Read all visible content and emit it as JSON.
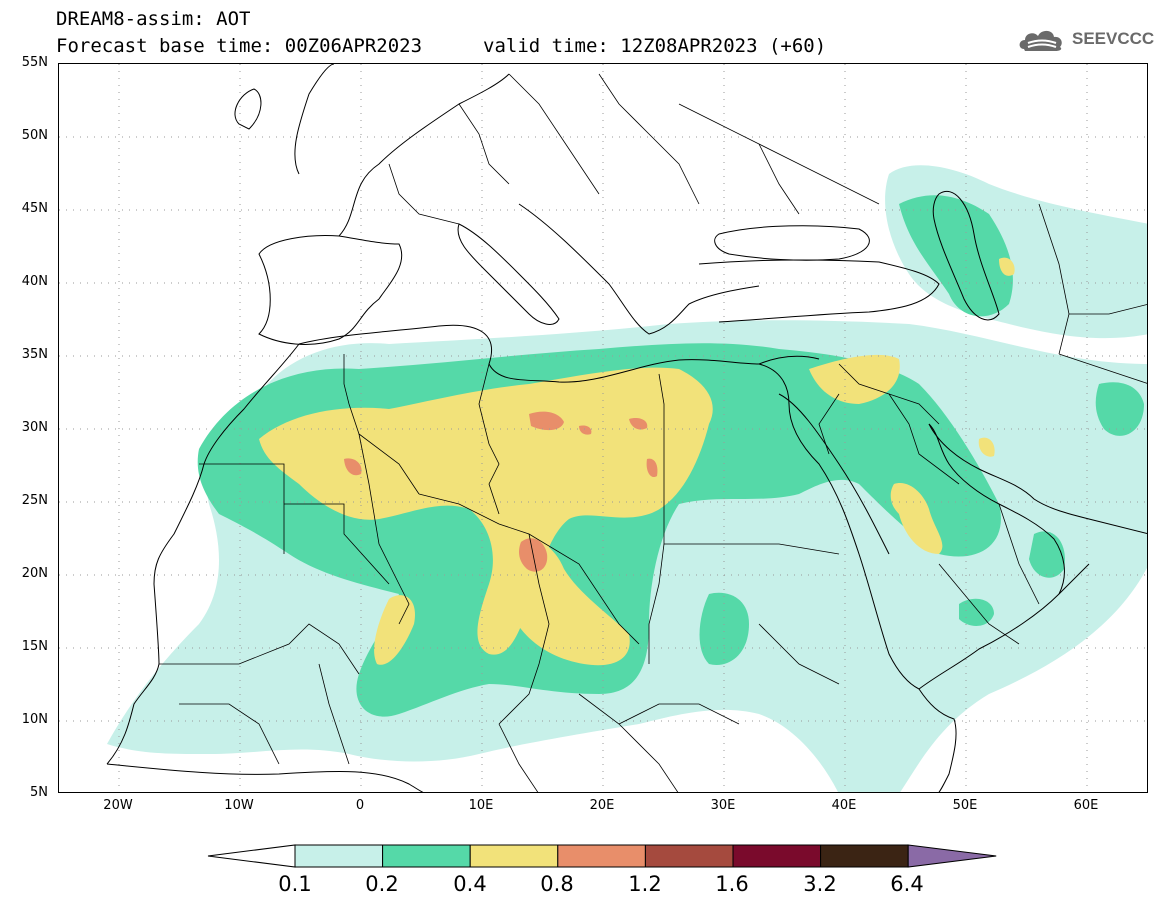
{
  "header": {
    "line1": "DREAM8-assim: AOT",
    "line2": "Forecast base time: 00Z06APR2023",
    "valid_time": "valid time: 12Z08APR2023 (+60)"
  },
  "logo": {
    "icon": "cloud-logo-icon",
    "text": "SEEVCCC"
  },
  "map": {
    "lat_labels": [
      "55N",
      "50N",
      "45N",
      "40N",
      "35N",
      "30N",
      "25N",
      "20N",
      "15N",
      "10N",
      "5N"
    ],
    "lon_labels": [
      "20W",
      "10W",
      "0",
      "10E",
      "20E",
      "30E",
      "40E",
      "50E",
      "60E"
    ],
    "colors": {
      "grid": "#9a9a9a",
      "coast": "#000000"
    }
  },
  "colorbar": {
    "labels": [
      "0.1",
      "0.2",
      "0.4",
      "0.8",
      "1.2",
      "1.6",
      "3.2",
      "6.4"
    ],
    "colors": [
      "#ffffff",
      "#c7f0e9",
      "#55d9a8",
      "#f2e27a",
      "#e88e6a",
      "#a54a3e",
      "#7a0a2c",
      "#3b2414",
      "#8a6aa6"
    ]
  }
}
